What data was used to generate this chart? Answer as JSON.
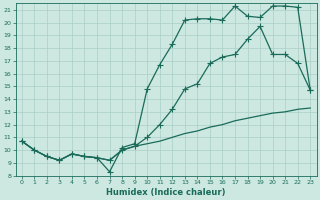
{
  "xlabel": "Humidex (Indice chaleur)",
  "bg_color": "#cce8e0",
  "line_color": "#1a6b5a",
  "grid_color": "#aacfc8",
  "xlim": [
    -0.5,
    23.5
  ],
  "ylim": [
    8,
    21.5
  ],
  "yticks": [
    8,
    9,
    10,
    11,
    12,
    13,
    14,
    15,
    16,
    17,
    18,
    19,
    20,
    21
  ],
  "xticks": [
    0,
    1,
    2,
    3,
    4,
    5,
    6,
    7,
    8,
    9,
    10,
    11,
    12,
    13,
    14,
    15,
    16,
    17,
    18,
    19,
    20,
    21,
    22,
    23
  ],
  "line1_x": [
    0,
    1,
    2,
    3,
    4,
    5,
    6,
    7,
    8,
    9,
    10,
    11,
    12,
    13,
    14,
    15,
    16,
    17,
    18,
    19,
    20,
    21,
    22,
    23
  ],
  "line1_y": [
    10.7,
    10.0,
    9.5,
    9.2,
    9.7,
    9.5,
    9.4,
    8.3,
    10.2,
    10.5,
    14.8,
    16.7,
    18.3,
    20.2,
    20.3,
    20.3,
    20.2,
    21.3,
    20.5,
    20.4,
    21.3,
    21.3,
    21.2,
    14.7
  ],
  "line2_x": [
    0,
    1,
    2,
    3,
    4,
    5,
    6,
    7,
    8,
    9,
    10,
    11,
    12,
    13,
    14,
    15,
    16,
    17,
    18,
    19,
    20,
    21,
    22,
    23
  ],
  "line2_y": [
    10.7,
    10.0,
    9.5,
    9.2,
    9.7,
    9.5,
    9.4,
    9.2,
    10.0,
    10.3,
    10.5,
    10.7,
    11.0,
    11.3,
    11.5,
    11.8,
    12.0,
    12.3,
    12.5,
    12.7,
    12.9,
    13.0,
    13.2,
    13.3
  ],
  "line3_x": [
    0,
    1,
    2,
    3,
    4,
    5,
    6,
    7,
    8,
    9,
    10,
    11,
    12,
    13,
    14,
    15,
    16,
    17,
    18,
    19,
    20,
    21,
    22,
    23
  ],
  "line3_y": [
    10.7,
    10.0,
    9.5,
    9.2,
    9.7,
    9.5,
    9.4,
    9.2,
    10.0,
    10.3,
    11.0,
    12.0,
    13.2,
    14.8,
    15.2,
    16.8,
    17.3,
    17.5,
    18.7,
    19.7,
    17.5,
    17.5,
    16.8,
    14.7
  ]
}
